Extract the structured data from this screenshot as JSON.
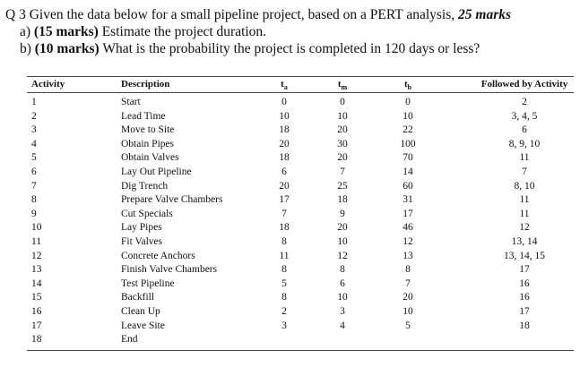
{
  "question": {
    "number": "Q 3",
    "text": "Given the data below for a small pipeline project, based on a PERT analysis,",
    "marks": "25 marks"
  },
  "parts": [
    {
      "label": "a)",
      "marks": "(15 marks)",
      "text": "Estimate the project duration."
    },
    {
      "label": "b)",
      "marks": "(10 marks)",
      "text": "What is the probability the project is completed in 120 days or less?"
    }
  ],
  "table": {
    "headers": [
      {
        "main": "Activity"
      },
      {
        "main": "Description"
      },
      {
        "main": "t",
        "sub": "a"
      },
      {
        "main": "t",
        "sub": "m"
      },
      {
        "main": "t",
        "sub": "b"
      },
      {
        "main": "Followed by Activity"
      }
    ],
    "rows": [
      [
        1,
        "Start",
        0,
        0,
        0,
        2
      ],
      [
        2,
        "Lead Time",
        10,
        10,
        10,
        "3, 4, 5"
      ],
      [
        3,
        "Move to Site",
        18,
        20,
        22,
        6
      ],
      [
        4,
        "Obtain Pipes",
        20,
        30,
        100,
        "8, 9, 10"
      ],
      [
        5,
        "Obtain Valves",
        18,
        20,
        70,
        11
      ],
      [
        6,
        "Lay Out Pipeline",
        6,
        7,
        14,
        7
      ],
      [
        7,
        "Dig Trench",
        20,
        25,
        60,
        "8, 10"
      ],
      [
        8,
        "Prepare Valve Chambers",
        17,
        18,
        31,
        11
      ],
      [
        9,
        "Cut Specials",
        7,
        9,
        17,
        11
      ],
      [
        10,
        "Lay Pipes",
        18,
        20,
        46,
        12
      ],
      [
        11,
        "Fit Valves",
        8,
        10,
        12,
        "13, 14"
      ],
      [
        12,
        "Concrete Anchors",
        11,
        12,
        13,
        "13, 14, 15"
      ],
      [
        13,
        "Finish Valve Chambers",
        8,
        8,
        8,
        17
      ],
      [
        14,
        "Test Pipeline",
        5,
        6,
        7,
        16
      ],
      [
        15,
        "Backfill",
        8,
        10,
        20,
        16
      ],
      [
        16,
        "Clean Up",
        2,
        3,
        10,
        17
      ],
      [
        17,
        "Leave Site",
        3,
        4,
        5,
        18
      ],
      [
        18,
        "End"
      ]
    ]
  }
}
